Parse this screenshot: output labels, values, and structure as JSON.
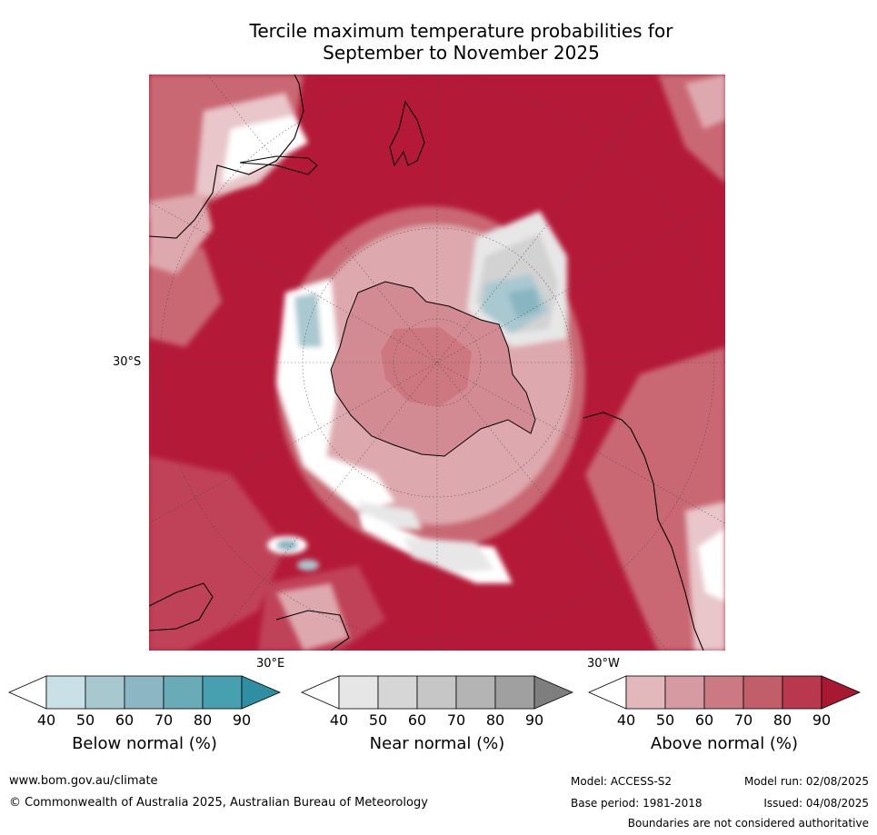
{
  "title": {
    "line1": "Tercile maximum temperature probabilities for",
    "line2": "September to November 2025"
  },
  "map": {
    "projection": "south-polar-stereographic",
    "latitude_label": "30°S",
    "longitude_labels": {
      "east": "30°E",
      "west": "30°W"
    },
    "colors": {
      "ocean_above_90": "#b41a38",
      "above_80": "#c04258",
      "above_70": "#c96873",
      "above_60": "#d38b93",
      "above_50": "#dea9ae",
      "above_40": "#e8c6c9",
      "near_50": "#e7e7e7",
      "near_60": "#d2d2d2",
      "below_50": "#a9c8d0",
      "below_60": "#87b5c2",
      "below_70": "#6aa7b5",
      "coastline": "#000000"
    }
  },
  "colorbars": [
    {
      "label": "Below normal (%)",
      "ticks": [
        "40",
        "50",
        "60",
        "70",
        "80",
        "90"
      ],
      "colors": [
        "#ffffff",
        "#c8e0e6",
        "#a8c8cf",
        "#8cb6c3",
        "#6aabb8",
        "#47a0b0",
        "#2e8fa2"
      ]
    },
    {
      "label": "Near normal (%)",
      "ticks": [
        "40",
        "50",
        "60",
        "70",
        "80",
        "90"
      ],
      "colors": [
        "#ffffff",
        "#e6e6e6",
        "#d6d6d6",
        "#c6c6c6",
        "#b4b4b4",
        "#a0a0a0",
        "#7e7e7e"
      ]
    },
    {
      "label": "Above normal (%)",
      "ticks": [
        "40",
        "50",
        "60",
        "70",
        "80",
        "90"
      ],
      "colors": [
        "#ffffff",
        "#e2b8bd",
        "#d69ba2",
        "#cb7a84",
        "#c25d6a",
        "#b9384e",
        "#a81830"
      ]
    }
  ],
  "footer": {
    "website": "www.bom.gov.au/climate",
    "copyright": "© Commonwealth of Australia 2025, Australian Bureau of Meteorology",
    "model": "Model: ACCESS-S2",
    "base_period": "Base period: 1981-2018",
    "model_run": "Model run: 02/08/2025",
    "issued": "Issued: 04/08/2025",
    "disclaimer": "Boundaries are not considered authoritative"
  }
}
